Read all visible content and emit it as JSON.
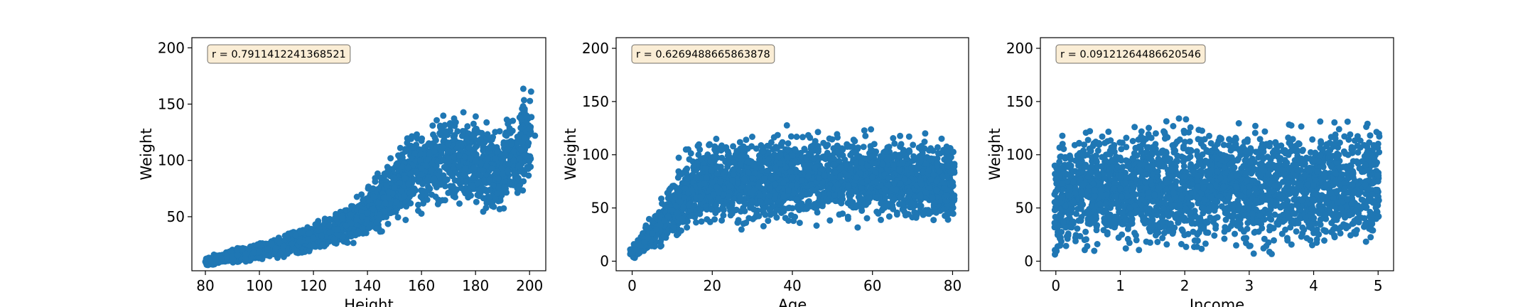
{
  "chart_data": [
    {
      "type": "scatter",
      "title": "",
      "xlabel": "Height",
      "ylabel": "Weight",
      "xlim": [
        75,
        206
      ],
      "ylim": [
        2,
        209
      ],
      "xticks": [
        80,
        100,
        120,
        140,
        160,
        180,
        200
      ],
      "yticks": [
        50,
        100,
        150,
        200
      ],
      "annotation": "r = 0.7911412241368521",
      "annotation_position": "top-left",
      "grid": false,
      "color": "#1f77b4",
      "x": [
        80,
        82,
        84,
        86,
        88,
        90,
        92,
        95,
        98,
        100,
        103,
        106,
        109,
        112,
        115,
        118,
        120,
        123,
        126,
        129,
        132,
        134,
        136,
        138,
        140,
        142,
        144,
        146,
        148,
        150,
        152,
        154,
        156,
        158,
        160,
        162,
        164,
        166,
        168,
        170,
        172,
        174,
        176,
        178,
        180,
        182,
        184,
        186,
        188,
        190,
        192,
        194,
        196,
        198,
        200,
        202
      ],
      "y": [
        10,
        11,
        12,
        13,
        14,
        15,
        16,
        17,
        18,
        19,
        21,
        22,
        24,
        26,
        28,
        30,
        31,
        33,
        36,
        39,
        42,
        44,
        47,
        50,
        53,
        57,
        62,
        67,
        72,
        76,
        80,
        84,
        88,
        90,
        93,
        95,
        97,
        99,
        100,
        102,
        103,
        104,
        103,
        102,
        100,
        98,
        95,
        93,
        90,
        88,
        110,
        100,
        95,
        120,
        123,
        122
      ]
    },
    {
      "type": "scatter",
      "title": "",
      "xlabel": "Age",
      "ylabel": "Weight",
      "xlim": [
        -4,
        84
      ],
      "ylim": [
        -9,
        210
      ],
      "xticks": [
        0,
        20,
        40,
        60,
        80
      ],
      "yticks": [
        0,
        50,
        100,
        150,
        200
      ],
      "annotation": "r = 0.6269488665863878",
      "annotation_position": "top-left",
      "grid": false,
      "color": "#1f77b4",
      "x": [
        0,
        1,
        2,
        3,
        4,
        5,
        6,
        7,
        8,
        9,
        10,
        11,
        12,
        13,
        14,
        15,
        16,
        17,
        18,
        20,
        22,
        25,
        28,
        30,
        33,
        36,
        40,
        44,
        48,
        52,
        56,
        60,
        64,
        68,
        72,
        76,
        80
      ],
      "y": [
        8,
        11,
        15,
        18,
        22,
        26,
        30,
        34,
        38,
        42,
        48,
        52,
        56,
        60,
        64,
        67,
        70,
        72,
        73,
        74,
        75,
        76,
        77,
        78,
        78,
        79,
        79,
        80,
        80,
        80,
        79,
        79,
        78,
        77,
        76,
        75,
        74
      ]
    },
    {
      "type": "scatter",
      "title": "",
      "xlabel": "Income",
      "ylabel": "Weight",
      "xlim": [
        -0.24,
        5.24
      ],
      "ylim": [
        -9,
        210
      ],
      "xticks": [
        0,
        1,
        2,
        3,
        4,
        5
      ],
      "yticks": [
        0,
        50,
        100,
        150,
        200
      ],
      "annotation": "r = 0.09121264486620546",
      "annotation_position": "top-left",
      "grid": false,
      "color": "#1f77b4",
      "x": [
        0.0,
        0.1,
        0.2,
        0.3,
        0.4,
        0.5,
        0.6,
        0.7,
        0.8,
        0.9,
        1.0,
        1.2,
        1.4,
        1.6,
        1.8,
        2.0,
        2.2,
        2.4,
        2.6,
        2.8,
        3.0,
        3.2,
        3.4,
        3.6,
        3.8,
        4.0,
        4.2,
        4.4,
        4.6,
        4.8,
        5.0
      ],
      "y": [
        55,
        60,
        62,
        64,
        65,
        66,
        67,
        67,
        68,
        68,
        68,
        69,
        69,
        69,
        69,
        70,
        70,
        70,
        70,
        70,
        70,
        70,
        71,
        71,
        71,
        71,
        72,
        72,
        72,
        72,
        75
      ]
    }
  ]
}
